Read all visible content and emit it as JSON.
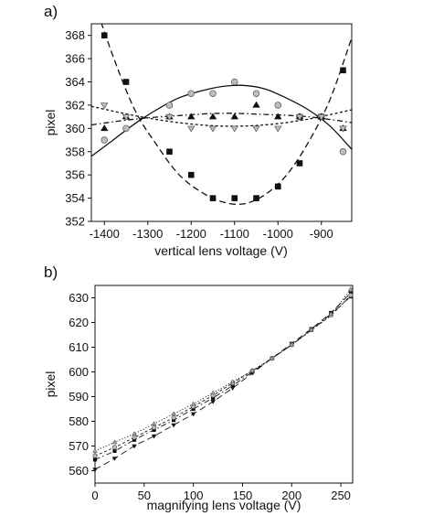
{
  "chart_data": [
    {
      "panel_label": "a)",
      "type": "scatter",
      "xlabel": "vertical lens voltage (V)",
      "ylabel": "pixel",
      "xlim": [
        -1430,
        -830
      ],
      "ylim": [
        352,
        369
      ],
      "xticks": [
        -1400,
        -1300,
        -1200,
        -1100,
        -1000,
        -900
      ],
      "yticks": [
        352,
        354,
        356,
        358,
        360,
        362,
        364,
        366,
        368
      ],
      "grid": false,
      "series": [
        {
          "marker": "square-black",
          "line": "long-dash",
          "points": [
            [
              -1400,
              368
            ],
            [
              -1350,
              364
            ],
            [
              -1250,
              358
            ],
            [
              -1200,
              356
            ],
            [
              -1150,
              354
            ],
            [
              -1100,
              354
            ],
            [
              -1050,
              354
            ],
            [
              -1000,
              355
            ],
            [
              -950,
              357
            ],
            [
              -900,
              361
            ],
            [
              -850,
              365
            ]
          ],
          "fit": [
            [
              -1430,
              371.6
            ],
            [
              -1380,
              366.2
            ],
            [
              -1330,
              361.6
            ],
            [
              -1280,
              358.6
            ],
            [
              -1230,
              356.1
            ],
            [
              -1180,
              354.6
            ],
            [
              -1130,
              353.7
            ],
            [
              -1080,
              353.5
            ],
            [
              -1030,
              354.3
            ],
            [
              -980,
              356.0
            ],
            [
              -930,
              358.8
            ],
            [
              -880,
              362.5
            ],
            [
              -830,
              367.8
            ]
          ]
        },
        {
          "marker": "circle-gray",
          "line": "solid",
          "points": [
            [
              -1400,
              359
            ],
            [
              -1350,
              360
            ],
            [
              -1250,
              362
            ],
            [
              -1200,
              363
            ],
            [
              -1150,
              363
            ],
            [
              -1100,
              364
            ],
            [
              -1050,
              363
            ],
            [
              -1000,
              362
            ],
            [
              -950,
              361
            ],
            [
              -900,
              361
            ],
            [
              -850,
              358
            ]
          ],
          "fit": [
            [
              -1430,
              357.6
            ],
            [
              -1380,
              359.0
            ],
            [
              -1330,
              360.4
            ],
            [
              -1280,
              361.6
            ],
            [
              -1230,
              362.6
            ],
            [
              -1180,
              363.2
            ],
            [
              -1130,
              363.6
            ],
            [
              -1080,
              363.7
            ],
            [
              -1030,
              363.4
            ],
            [
              -980,
              362.6
            ],
            [
              -930,
              361.6
            ],
            [
              -880,
              360.2
            ],
            [
              -830,
              358.2
            ]
          ]
        },
        {
          "marker": "triangle-up-black",
          "line": "dash-dot",
          "points": [
            [
              -1400,
              360
            ],
            [
              -1350,
              361
            ],
            [
              -1250,
              361
            ],
            [
              -1200,
              361
            ],
            [
              -1150,
              361
            ],
            [
              -1100,
              361
            ],
            [
              -1050,
              362
            ],
            [
              -1000,
              361
            ],
            [
              -950,
              361
            ],
            [
              -900,
              361
            ],
            [
              -850,
              360
            ]
          ],
          "fit": [
            [
              -1430,
              360.3
            ],
            [
              -1330,
              360.8
            ],
            [
              -1230,
              361.1
            ],
            [
              -1130,
              361.3
            ],
            [
              -1030,
              361.2
            ],
            [
              -930,
              361.0
            ],
            [
              -830,
              360.5
            ]
          ]
        },
        {
          "marker": "triangle-down-gray",
          "line": "short-dash",
          "points": [
            [
              -1400,
              362
            ],
            [
              -1350,
              361
            ],
            [
              -1250,
              361
            ],
            [
              -1200,
              360
            ],
            [
              -1150,
              360
            ],
            [
              -1100,
              360
            ],
            [
              -1050,
              360
            ],
            [
              -1000,
              360
            ],
            [
              -950,
              361
            ],
            [
              -900,
              361
            ],
            [
              -850,
              360
            ]
          ],
          "fit": [
            [
              -1430,
              361.9
            ],
            [
              -1330,
              361.1
            ],
            [
              -1230,
              360.5
            ],
            [
              -1130,
              360.2
            ],
            [
              -1030,
              360.3
            ],
            [
              -930,
              360.8
            ],
            [
              -830,
              361.6
            ]
          ]
        }
      ]
    },
    {
      "panel_label": "b)",
      "type": "line",
      "xlabel": "magnifying lens voltage (V)",
      "ylabel": "pixel",
      "xlim": [
        0,
        262
      ],
      "ylim": [
        555,
        635
      ],
      "xticks": [
        0,
        50,
        100,
        150,
        200,
        250
      ],
      "yticks": [
        560,
        570,
        580,
        590,
        600,
        610,
        620,
        630
      ],
      "grid": false,
      "series": [
        {
          "marker": "triangle-down-black",
          "line": "long-dash",
          "points": [
            [
              0,
              560.5
            ],
            [
              20,
              565
            ],
            [
              40,
              570
            ],
            [
              60,
              574
            ],
            [
              80,
              578.5
            ],
            [
              100,
              583
            ],
            [
              120,
              588
            ],
            [
              140,
              593.5
            ],
            [
              160,
              599.5
            ],
            [
              180,
              605.5
            ],
            [
              200,
              611.5
            ],
            [
              220,
              617.5
            ],
            [
              240,
              624
            ],
            [
              260,
              632
            ]
          ]
        },
        {
          "marker": "square-black",
          "line": "dash-dot",
          "points": [
            [
              0,
              564.5
            ],
            [
              20,
              568
            ],
            [
              40,
              572.5
            ],
            [
              60,
              576.5
            ],
            [
              80,
              580.5
            ],
            [
              100,
              585
            ],
            [
              120,
              589.5
            ],
            [
              140,
              594.5
            ],
            [
              160,
              600
            ],
            [
              180,
              605.5
            ],
            [
              200,
              611
            ],
            [
              220,
              617
            ],
            [
              240,
              623.5
            ],
            [
              260,
              630.5
            ]
          ]
        },
        {
          "marker": "circle-gray",
          "line": "short-dash",
          "points": [
            [
              0,
              566
            ],
            [
              20,
              569.5
            ],
            [
              40,
              573.5
            ],
            [
              60,
              577.5
            ],
            [
              80,
              581.5
            ],
            [
              100,
              586
            ],
            [
              120,
              590.5
            ],
            [
              140,
              595.5
            ],
            [
              160,
              600.5
            ],
            [
              180,
              605.5
            ],
            [
              200,
              611
            ],
            [
              220,
              617
            ],
            [
              240,
              623
            ],
            [
              260,
              631
            ]
          ]
        },
        {
          "marker": "triangle-up-gray",
          "line": "dotted",
          "points": [
            [
              0,
              568
            ],
            [
              20,
              571.5
            ],
            [
              40,
              575
            ],
            [
              60,
              579
            ],
            [
              80,
              583
            ],
            [
              100,
              587
            ],
            [
              120,
              591.5
            ],
            [
              140,
              596
            ],
            [
              160,
              600.5
            ],
            [
              180,
              605.5
            ],
            [
              200,
              611
            ],
            [
              220,
              617
            ],
            [
              240,
              623.5
            ],
            [
              260,
              633.5
            ]
          ]
        }
      ]
    }
  ]
}
